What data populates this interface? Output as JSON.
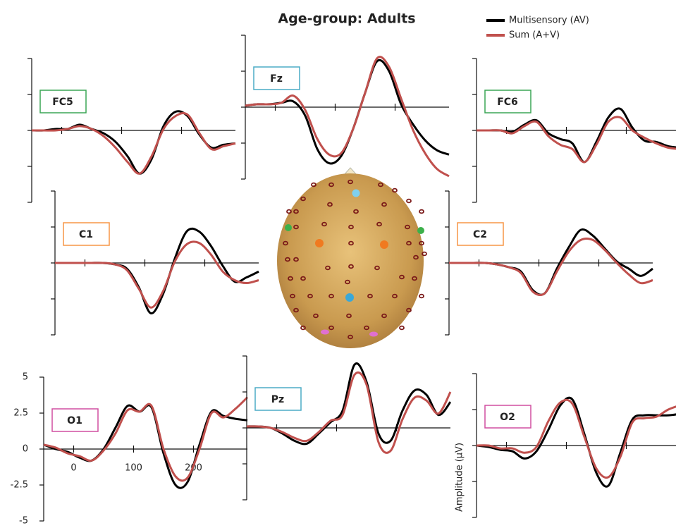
{
  "title": "Age-group: Adults",
  "chart_data": [
    {
      "type": "line",
      "label": "FC5",
      "label_color": "#3aa655",
      "xlim": [
        -50,
        290
      ],
      "ylim": [
        -5,
        5
      ],
      "xticks": [
        0,
        100,
        200
      ],
      "yticks": [
        -5,
        -2.5,
        0,
        2.5,
        5
      ],
      "x": [
        -50,
        -30,
        -10,
        10,
        30,
        50,
        70,
        90,
        110,
        130,
        150,
        170,
        190,
        210,
        230,
        250,
        270,
        290
      ],
      "series": [
        {
          "name": "Multisensory (AV)",
          "color": "#000000",
          "values": [
            0,
            0,
            0.1,
            0.1,
            0.4,
            0.1,
            -0.2,
            -0.8,
            -1.8,
            -3.0,
            -2.0,
            0.3,
            1.3,
            1.0,
            -0.3,
            -1.2,
            -1.0,
            -0.9
          ]
        },
        {
          "name": "Sum (A+V)",
          "color": "#c0504d",
          "values": [
            0,
            0,
            0,
            0.1,
            0.3,
            0.1,
            -0.4,
            -1.2,
            -2.2,
            -3.0,
            -1.8,
            0.1,
            1.0,
            1.1,
            -0.2,
            -1.3,
            -1.1,
            -0.9
          ]
        }
      ]
    },
    {
      "type": "line",
      "label": "Fz",
      "label_color": "#4bacc6",
      "xlim": [
        -50,
        290
      ],
      "ylim": [
        -5,
        5
      ],
      "xticks": [
        0,
        100,
        200
      ],
      "yticks": [
        -5,
        -2.5,
        0,
        2.5,
        5
      ],
      "x": [
        -50,
        -30,
        -10,
        10,
        30,
        50,
        70,
        90,
        110,
        130,
        150,
        170,
        190,
        210,
        230,
        250,
        270,
        290
      ],
      "series": [
        {
          "name": "Multisensory (AV)",
          "color": "#000000",
          "values": [
            0.1,
            0.2,
            0.2,
            0.3,
            0.4,
            -0.6,
            -2.9,
            -3.9,
            -3.4,
            -1.5,
            1.0,
            3.2,
            2.5,
            0.2,
            -1.2,
            -2.3,
            -3.0,
            -3.3
          ]
        },
        {
          "name": "Sum (A+V)",
          "color": "#c0504d",
          "values": [
            0.1,
            0.2,
            0.2,
            0.3,
            0.8,
            -0.2,
            -2.2,
            -3.3,
            -3.2,
            -1.5,
            1.0,
            3.4,
            2.8,
            0.6,
            -1.6,
            -3.2,
            -4.3,
            -4.8
          ]
        }
      ]
    },
    {
      "type": "line",
      "label": "FC6",
      "label_color": "#3aa655",
      "xlim": [
        -50,
        290
      ],
      "ylim": [
        -5,
        5
      ],
      "xticks": [
        0,
        100,
        200
      ],
      "yticks": [
        -5,
        -2.5,
        0,
        2.5,
        5
      ],
      "x": [
        -50,
        -30,
        -10,
        10,
        30,
        50,
        70,
        90,
        110,
        130,
        150,
        170,
        190,
        210,
        230,
        250,
        270,
        290
      ],
      "series": [
        {
          "name": "Multisensory (AV)",
          "color": "#000000",
          "values": [
            0,
            0,
            0,
            -0.1,
            0.4,
            0.7,
            -0.2,
            -0.6,
            -0.9,
            -2.2,
            -0.8,
            0.9,
            1.5,
            0.2,
            -0.7,
            -0.8,
            -1.1,
            -1.2
          ]
        },
        {
          "name": "Sum (A+V)",
          "color": "#c0504d",
          "values": [
            0,
            0,
            0,
            -0.2,
            0.3,
            0.6,
            -0.4,
            -1.0,
            -1.3,
            -2.2,
            -1.0,
            0.6,
            0.9,
            0.0,
            -0.5,
            -0.9,
            -1.2,
            -1.3
          ]
        }
      ]
    },
    {
      "type": "line",
      "label": "C1",
      "label_color": "#f79646",
      "xlim": [
        -50,
        290
      ],
      "ylim": [
        -5,
        5
      ],
      "xticks": [
        0,
        100,
        200
      ],
      "yticks": [
        -5,
        -2.5,
        0,
        2.5,
        5
      ],
      "x": [
        -50,
        -30,
        -10,
        10,
        30,
        50,
        70,
        90,
        110,
        130,
        150,
        170,
        190,
        210,
        230,
        250,
        270,
        290
      ],
      "series": [
        {
          "name": "Multisensory (AV)",
          "color": "#000000",
          "values": [
            0,
            0,
            0,
            0,
            0,
            -0.1,
            -0.4,
            -1.7,
            -3.5,
            -2.2,
            0.3,
            2.2,
            2.2,
            1.2,
            -0.2,
            -1.3,
            -1.0,
            -0.6
          ]
        },
        {
          "name": "Sum (A+V)",
          "color": "#c0504d",
          "values": [
            0,
            0,
            0,
            0,
            0,
            -0.1,
            -0.5,
            -1.8,
            -3.1,
            -2.0,
            0.1,
            1.3,
            1.4,
            0.6,
            -0.6,
            -1.2,
            -1.4,
            -1.2
          ]
        }
      ]
    },
    {
      "type": "line",
      "label": "C2",
      "label_color": "#f79646",
      "xlim": [
        -50,
        290
      ],
      "ylim": [
        -5,
        5
      ],
      "xticks": [
        0,
        100,
        200
      ],
      "yticks": [
        -5,
        -2.5,
        0,
        2.5,
        5
      ],
      "x": [
        -50,
        -30,
        -10,
        10,
        30,
        50,
        70,
        90,
        110,
        130,
        150,
        170,
        190,
        210,
        230,
        250,
        270,
        290
      ],
      "series": [
        {
          "name": "Multisensory (AV)",
          "color": "#000000",
          "values": [
            0,
            0,
            0,
            0,
            -0.1,
            -0.3,
            -0.6,
            -1.9,
            -2.1,
            -0.4,
            1.1,
            2.3,
            1.9,
            1.0,
            0.1,
            -0.4,
            -0.9,
            -0.4
          ]
        },
        {
          "name": "Sum (A+V)",
          "color": "#c0504d",
          "values": [
            0,
            0,
            0,
            0,
            -0.1,
            -0.3,
            -0.7,
            -2.0,
            -2.1,
            -0.6,
            0.8,
            1.6,
            1.6,
            0.9,
            0.0,
            -0.8,
            -1.4,
            -1.2
          ]
        }
      ]
    },
    {
      "type": "line",
      "label": "O1",
      "label_color": "#d04fa0",
      "tick_labels": true,
      "ylabel": "Amplitude (µV)",
      "xlim": [
        -50,
        290
      ],
      "ylim": [
        -5,
        5
      ],
      "xticks": [
        0,
        100,
        200
      ],
      "yticks": [
        -5,
        -2.5,
        0,
        2.5,
        5
      ],
      "x": [
        -50,
        -30,
        -10,
        10,
        30,
        50,
        70,
        90,
        110,
        130,
        150,
        170,
        190,
        210,
        230,
        250,
        270,
        290
      ],
      "series": [
        {
          "name": "Multisensory (AV)",
          "color": "#000000",
          "values": [
            0.3,
            0.0,
            -0.2,
            -0.6,
            -0.8,
            0.0,
            1.5,
            3.0,
            2.6,
            2.9,
            -0.3,
            -2.5,
            -2.3,
            0.3,
            2.6,
            2.3,
            2.1,
            2.0
          ]
        },
        {
          "name": "Sum (A+V)",
          "color": "#c0504d",
          "values": [
            0.3,
            0.1,
            -0.3,
            -0.5,
            -0.8,
            -0.1,
            1.1,
            2.7,
            2.6,
            3.0,
            0.0,
            -1.9,
            -2.0,
            0.0,
            2.5,
            2.2,
            2.8,
            3.6
          ]
        }
      ]
    },
    {
      "type": "line",
      "label": "Pz",
      "label_color": "#4bacc6",
      "xlim": [
        -50,
        290
      ],
      "ylim": [
        -5,
        5
      ],
      "xticks": [
        0,
        100,
        200
      ],
      "yticks": [
        -5,
        -2.5,
        0,
        2.5,
        5
      ],
      "x": [
        -50,
        -30,
        -10,
        10,
        30,
        50,
        70,
        90,
        110,
        130,
        150,
        170,
        190,
        210,
        230,
        250,
        270,
        290
      ],
      "series": [
        {
          "name": "Multisensory (AV)",
          "color": "#000000",
          "values": [
            0.1,
            0.1,
            0.0,
            -0.4,
            -0.9,
            -1.1,
            -0.4,
            0.4,
            1.2,
            4.4,
            3.2,
            -0.4,
            -0.9,
            1.2,
            2.6,
            2.3,
            0.9,
            1.8
          ]
        },
        {
          "name": "Sum (A+V)",
          "color": "#c0504d",
          "values": [
            0.1,
            0.1,
            0.0,
            -0.3,
            -0.7,
            -0.9,
            -0.3,
            0.5,
            0.9,
            3.7,
            3.0,
            -1.0,
            -1.6,
            0.6,
            2.1,
            1.9,
            1.0,
            2.5
          ]
        }
      ]
    },
    {
      "type": "line",
      "label": "O2",
      "label_color": "#d04fa0",
      "xlim": [
        -50,
        290
      ],
      "ylim": [
        -5,
        5
      ],
      "xticks": [
        0,
        100,
        200
      ],
      "yticks": [
        -5,
        -2.5,
        0,
        2.5,
        5
      ],
      "x": [
        -50,
        -30,
        -10,
        10,
        30,
        50,
        70,
        90,
        110,
        130,
        150,
        170,
        190,
        210,
        230,
        250,
        270,
        290
      ],
      "series": [
        {
          "name": "Multisensory (AV)",
          "color": "#000000",
          "values": [
            0,
            -0.1,
            -0.3,
            -0.4,
            -0.9,
            -0.4,
            1.1,
            2.8,
            3.2,
            0.8,
            -1.9,
            -2.8,
            -0.5,
            1.8,
            2.1,
            2.1,
            2.1,
            2.2
          ]
        },
        {
          "name": "Sum (A+V)",
          "color": "#c0504d",
          "values": [
            0,
            0,
            -0.2,
            -0.2,
            -0.5,
            -0.1,
            1.7,
            3.0,
            2.9,
            0.6,
            -1.6,
            -2.2,
            -0.8,
            1.6,
            1.9,
            2.0,
            2.5,
            2.8
          ]
        }
      ]
    }
  ]
}
